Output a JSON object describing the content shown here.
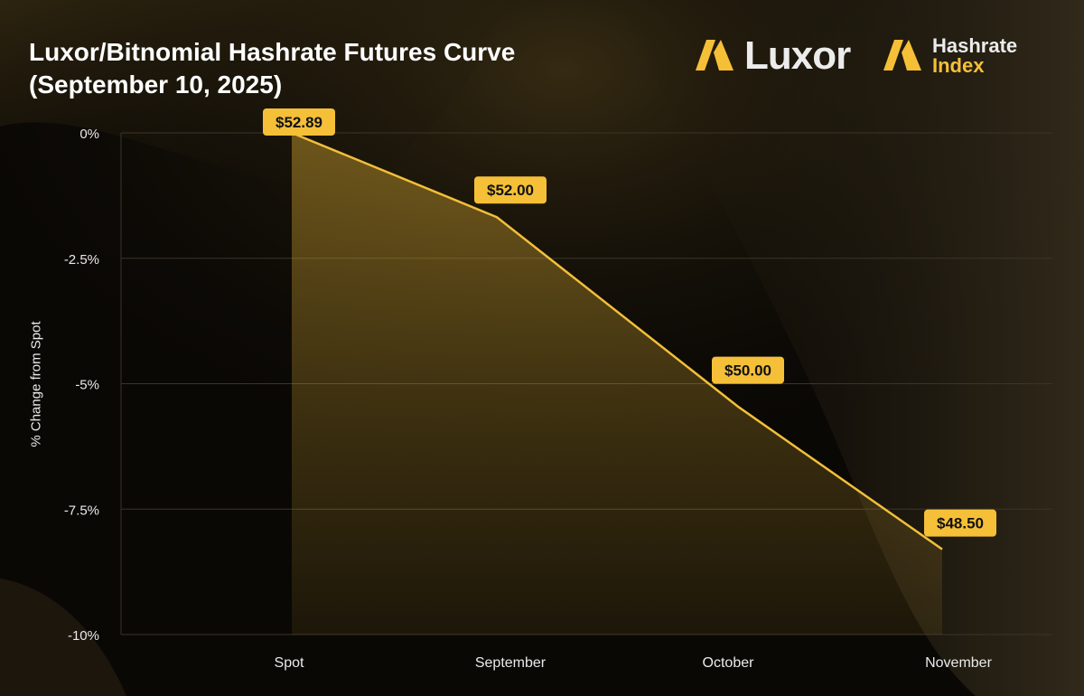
{
  "title": {
    "line1": "Luxor/Bitnomial Hashrate Futures Curve",
    "line2": "(September 10, 2025)"
  },
  "brands": {
    "luxor": {
      "name": "Luxor",
      "icon": "luxor-logo-icon"
    },
    "hashrate_index": {
      "line1": "Hashrate",
      "line2": "Index",
      "icon": "hashrate-index-logo-icon"
    }
  },
  "colors": {
    "accent": "#f5c038",
    "line": "#f2bf3a",
    "label_bg": "#f5c038",
    "label_text": "#111111",
    "grid": "#3a3528",
    "background": "#0a0805"
  },
  "chart_data": {
    "type": "area",
    "categories": [
      "Spot",
      "September",
      "October",
      "November"
    ],
    "values": [
      0,
      -1.68,
      -5.47,
      -8.3
    ],
    "price_labels": [
      "$52.89",
      "$52.00",
      "$50.00",
      "$48.50"
    ],
    "ylabel": "% Change from Spot",
    "xlabel": "",
    "ylim": [
      -10,
      0
    ],
    "yticks": [
      0,
      -2.5,
      -5,
      -7.5,
      -10
    ],
    "ytick_labels": [
      "0%",
      "-2.5%",
      "-5%",
      "-7.5%",
      "-10%"
    ],
    "grid": true,
    "legend": false
  }
}
